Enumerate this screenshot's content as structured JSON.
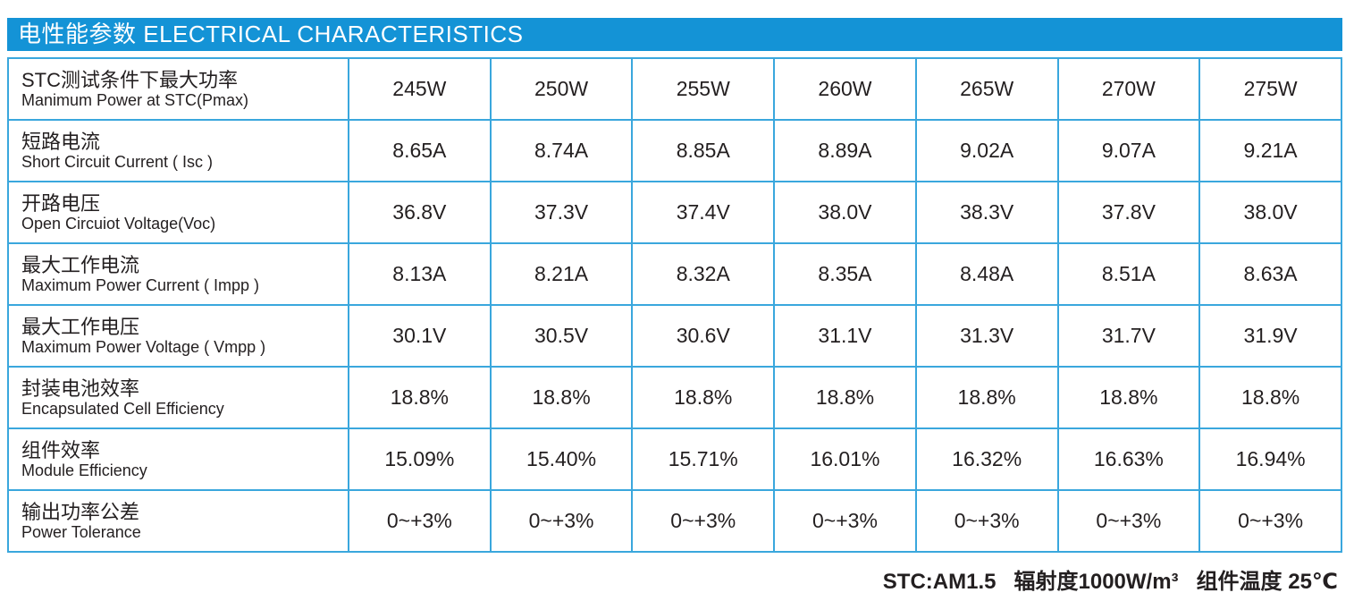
{
  "header": {
    "title": "电性能参数 ELECTRICAL CHARACTERISTICS"
  },
  "table": {
    "rows": [
      {
        "label_cn": "STC测试条件下最大功率",
        "label_en": "Manimum Power at STC(Pmax)",
        "values": [
          "245W",
          "250W",
          "255W",
          "260W",
          "265W",
          "270W",
          "275W"
        ]
      },
      {
        "label_cn": "短路电流",
        "label_en": "Short Circuit Current ( Isc )",
        "values": [
          "8.65A",
          "8.74A",
          "8.85A",
          "8.89A",
          "9.02A",
          "9.07A",
          "9.21A"
        ]
      },
      {
        "label_cn": "开路电压",
        "label_en": "Open Circuiot Voltage(Voc)",
        "values": [
          "36.8V",
          "37.3V",
          "37.4V",
          "38.0V",
          "38.3V",
          "37.8V",
          "38.0V"
        ]
      },
      {
        "label_cn": "最大工作电流",
        "label_en": "Maximum Power Current ( Impp )",
        "values": [
          "8.13A",
          "8.21A",
          "8.32A",
          "8.35A",
          "8.48A",
          "8.51A",
          "8.63A"
        ]
      },
      {
        "label_cn": "最大工作电压",
        "label_en": "Maximum Power Voltage ( Vmpp )",
        "values": [
          "30.1V",
          "30.5V",
          "30.6V",
          "31.1V",
          "31.3V",
          "31.7V",
          "31.9V"
        ]
      },
      {
        "label_cn": "封装电池效率",
        "label_en": "Encapsulated Cell Efficiency",
        "values": [
          "18.8%",
          "18.8%",
          "18.8%",
          "18.8%",
          "18.8%",
          "18.8%",
          "18.8%"
        ]
      },
      {
        "label_cn": "组件效率",
        "label_en": "Module Efficiency",
        "values": [
          "15.09%",
          "15.40%",
          "15.71%",
          "16.01%",
          "16.32%",
          "16.63%",
          "16.94%"
        ]
      },
      {
        "label_cn": "输出功率公差",
        "label_en": "Power Tolerance",
        "values": [
          "0~+3%",
          "0~+3%",
          "0~+3%",
          "0~+3%",
          "0~+3%",
          "0~+3%",
          "0~+3%"
        ]
      }
    ]
  },
  "footnote": {
    "condition": "STC:AM1.5",
    "irradiance": "辐射度1000W/m³",
    "temperature": "组件温度 25℃"
  },
  "colors": {
    "accent": "#1493d6",
    "border": "#3aa7dd",
    "text": "#231f20"
  }
}
